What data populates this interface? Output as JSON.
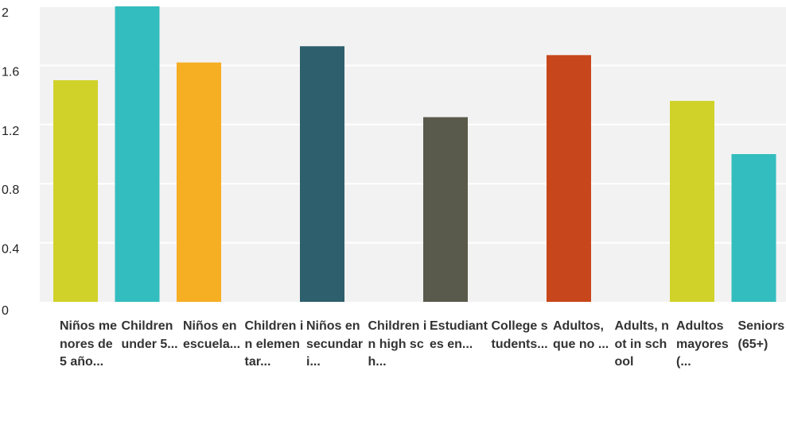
{
  "chart_data": {
    "type": "bar",
    "categories": [
      "Niños menores de 5 año...",
      "Children under 5...",
      "Niños en escuela...",
      "Children in elementar...",
      "Niños en secundari...",
      "Children in high sch...",
      "Estudiantes en...",
      "College students...",
      "Adultos, que no ...",
      "Adults, not in school",
      "Adultos mayores (...",
      "Seniors (65+)"
    ],
    "values": [
      1.5,
      2.0,
      1.62,
      0,
      1.73,
      0,
      1.25,
      0,
      1.67,
      0,
      1.36,
      1.0
    ],
    "colors": [
      "#d0d22a",
      "#34bdbf",
      "#f6ae23",
      "#d0d22a",
      "#2e5f6d",
      "#34bdbf",
      "#5a5a4c",
      "#f6ae23",
      "#c8461b",
      "#2e5f6d",
      "#d0d22a",
      "#34bdbf"
    ],
    "yticks": [
      "0",
      "0.4",
      "0.8",
      "1.2",
      "1.6",
      "2"
    ],
    "ylim": [
      0,
      2
    ],
    "grid": true,
    "plot_background": "#f2f2f2",
    "gridline_color": "#ffffff",
    "title": "",
    "xlabel": "",
    "ylabel": ""
  }
}
